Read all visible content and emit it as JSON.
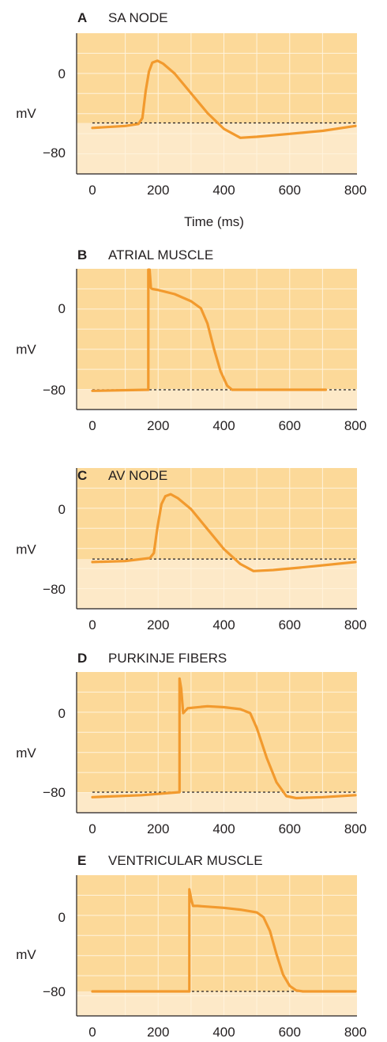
{
  "colors": {
    "panel_fill": "#fcd999",
    "panel_lower_fill": "#fde9c8",
    "grid": "#fff3dc",
    "trace": "#f29a2e",
    "axis": "#231f20",
    "threshold": "#231f20"
  },
  "chart_data": [
    {
      "type": "line",
      "panel_letter": "A",
      "title": "SA NODE",
      "xlabel": "Time (ms)",
      "ylabel": "mV",
      "xlim": [
        0,
        800
      ],
      "x_ticks": [
        0,
        200,
        400,
        600,
        800
      ],
      "y_ticks": [
        0,
        -80
      ],
      "threshold_mv": -50,
      "grid": true,
      "series": [
        {
          "x": [
            0,
            100,
            140,
            152,
            162,
            172,
            182,
            198,
            215,
            250,
            300,
            350,
            400,
            450,
            500,
            600,
            700,
            800
          ],
          "y": [
            -55,
            -53,
            -51,
            -45,
            -18,
            2,
            11,
            13,
            10,
            0,
            -20,
            -40,
            -56,
            -65,
            -64,
            -61,
            -58,
            -53
          ]
        }
      ]
    },
    {
      "type": "line",
      "panel_letter": "B",
      "title": "ATRIAL MUSCLE",
      "ylabel": "mV",
      "xlim": [
        0,
        800
      ],
      "x_ticks": [
        0,
        200,
        400,
        600,
        800
      ],
      "y_ticks": [
        0,
        -80
      ],
      "threshold_mv": -80,
      "grid": true,
      "series": [
        {
          "x": [
            0,
            170,
            170,
            174,
            178,
            182,
            200,
            250,
            300,
            330,
            350,
            370,
            390,
            410,
            425,
            440,
            500,
            600,
            710
          ],
          "y": [
            -81,
            -80,
            38,
            38,
            20,
            19,
            18,
            14,
            7,
            0,
            -15,
            -40,
            -62,
            -76,
            -80,
            -80,
            -80,
            -80,
            -80
          ]
        }
      ]
    },
    {
      "type": "line",
      "panel_letter": "C",
      "title": "AV NODE",
      "ylabel": "mV",
      "xlim": [
        0,
        800
      ],
      "x_ticks": [
        0,
        200,
        400,
        600,
        800
      ],
      "y_ticks": [
        0,
        -80
      ],
      "threshold_mv": -50,
      "grid": true,
      "series": [
        {
          "x": [
            0,
            100,
            175,
            187,
            198,
            210,
            222,
            238,
            260,
            300,
            350,
            400,
            450,
            490,
            550,
            650,
            800
          ],
          "y": [
            -53,
            -52,
            -49,
            -44,
            -18,
            5,
            13,
            15,
            11,
            0,
            -20,
            -40,
            -55,
            -62,
            -61,
            -58,
            -53
          ]
        }
      ]
    },
    {
      "type": "line",
      "panel_letter": "D",
      "title": "PURKINJE FIBERS",
      "ylabel": "mV",
      "xlim": [
        0,
        800
      ],
      "x_ticks": [
        0,
        200,
        400,
        600,
        800
      ],
      "y_ticks": [
        0,
        -80
      ],
      "threshold_mv": -80,
      "grid": true,
      "series": [
        {
          "x": [
            0,
            150,
            265,
            265,
            270,
            276,
            290,
            350,
            400,
            450,
            480,
            500,
            530,
            560,
            590,
            620,
            700,
            800
          ],
          "y": [
            -85,
            -83,
            -80,
            35,
            25,
            0,
            5,
            7,
            6,
            4,
            0,
            -15,
            -45,
            -70,
            -84,
            -86,
            -85,
            -83
          ]
        }
      ]
    },
    {
      "type": "line",
      "panel_letter": "E",
      "title": "VENTRICULAR MUSCLE",
      "ylabel": "mV",
      "xlim": [
        0,
        800
      ],
      "x_ticks": [
        0,
        200,
        400,
        600,
        800
      ],
      "y_ticks": [
        0,
        -80
      ],
      "threshold_mv": -80,
      "grid": true,
      "series": [
        {
          "x": [
            0,
            200,
            295,
            295,
            300,
            306,
            320,
            400,
            450,
            500,
            520,
            540,
            560,
            580,
            600,
            620,
            640,
            700,
            800
          ],
          "y": [
            -80,
            -80,
            -80,
            30,
            20,
            12,
            12,
            10,
            8,
            5,
            0,
            -15,
            -40,
            -62,
            -74,
            -79,
            -80,
            -80,
            -80
          ]
        }
      ]
    }
  ]
}
